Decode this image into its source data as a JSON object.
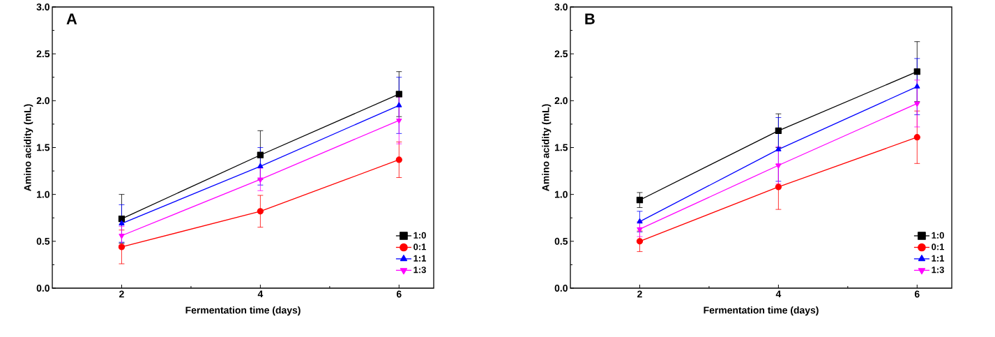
{
  "chart_data": [
    {
      "type": "line",
      "annotations": [
        "A"
      ],
      "xlabel": "Fermentation time (days)",
      "ylabel": "Amino acidity (mL)",
      "x": [
        2,
        4,
        6
      ],
      "xlim": [
        1,
        6.5
      ],
      "xticks": [
        2,
        4,
        6
      ],
      "ylim": [
        0,
        3
      ],
      "yticks": [
        {
          "value": 0,
          "label": "0.0"
        },
        {
          "value": 0.5,
          "label": "0.5"
        },
        {
          "value": 1,
          "label": "1.0"
        },
        {
          "value": 1.5,
          "label": "1.5"
        },
        {
          "value": 2,
          "label": "2.0"
        },
        {
          "value": 2.5,
          "label": "2.5"
        },
        {
          "value": 3,
          "label": "3.0"
        }
      ],
      "legend": "bottom right",
      "grid": false,
      "series": [
        {
          "name": "1:0",
          "color": "#000000",
          "marker": "square",
          "values": [
            0.74,
            1.42,
            2.07
          ],
          "errors": [
            0.26,
            0.26,
            0.24
          ]
        },
        {
          "name": "0:1",
          "color": "#ff0000",
          "marker": "circle",
          "values": [
            0.44,
            0.82,
            1.37
          ],
          "errors": [
            0.18,
            0.17,
            0.19
          ]
        },
        {
          "name": "1:1",
          "color": "#0000ff",
          "marker": "triangle",
          "values": [
            0.69,
            1.3,
            1.95
          ],
          "errors": [
            0.2,
            0.2,
            0.3
          ]
        },
        {
          "name": "1:3",
          "color": "#ff00ff",
          "marker": "triangle",
          "values": [
            0.56,
            1.16,
            1.79
          ],
          "errors": [
            0.1,
            0.12,
            0.25
          ]
        }
      ]
    },
    {
      "type": "line",
      "annotations": [
        "B"
      ],
      "xlabel": "Fermentation time (days)",
      "ylabel": "Amino acidity (mL)",
      "x": [
        2,
        4,
        6
      ],
      "xlim": [
        1,
        6.5
      ],
      "xticks": [
        2,
        4,
        6
      ],
      "ylim": [
        0,
        3
      ],
      "yticks": [
        {
          "value": 0,
          "label": "0.0"
        },
        {
          "value": 0.5,
          "label": "0.5"
        },
        {
          "value": 1,
          "label": "1.0"
        },
        {
          "value": 1.5,
          "label": "1.5"
        },
        {
          "value": 2,
          "label": "2.0"
        },
        {
          "value": 2.5,
          "label": "2.5"
        },
        {
          "value": 3,
          "label": "3.0"
        }
      ],
      "legend": "bottom right",
      "grid": false,
      "series": [
        {
          "name": "1:0",
          "color": "#000000",
          "marker": "square",
          "values": [
            0.94,
            1.68,
            2.31
          ],
          "errors": [
            0.08,
            0.18,
            0.32
          ]
        },
        {
          "name": "0:1",
          "color": "#ff0000",
          "marker": "circle",
          "values": [
            0.5,
            1.08,
            1.61
          ],
          "errors": [
            0.11,
            0.24,
            0.28
          ]
        },
        {
          "name": "1:1",
          "color": "#0000ff",
          "marker": "triangle",
          "values": [
            0.71,
            1.48,
            2.15
          ],
          "errors": [
            0.11,
            0.34,
            0.3
          ]
        },
        {
          "name": "1:3",
          "color": "#ff00ff",
          "marker": "triangle",
          "values": [
            0.63,
            1.31,
            1.97
          ],
          "errors": [
            0.08,
            0.2,
            0.25
          ]
        }
      ]
    }
  ]
}
